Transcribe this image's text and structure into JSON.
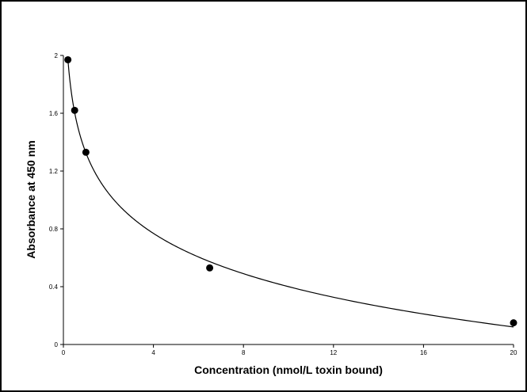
{
  "chart_data": {
    "type": "scatter",
    "title": "",
    "xlabel": "Concentration (nmol/L toxin bound)",
    "ylabel": "Absorbance  at 450 nm",
    "xlim": [
      0,
      20
    ],
    "ylim": [
      0,
      2
    ],
    "xticks": [
      0,
      4,
      8,
      12,
      16,
      20
    ],
    "yticks": [
      0,
      0.4,
      0.8,
      1.2,
      1.6,
      2
    ],
    "xtick_labels": [
      "0",
      "4",
      "8",
      "12",
      "16",
      "20"
    ],
    "ytick_labels": [
      "0",
      "0.4",
      "0.8",
      "1.2",
      "1.6",
      "2"
    ],
    "grid": false,
    "legend": "none",
    "series": [
      {
        "points": [
          {
            "x": 0.2,
            "y": 1.97
          },
          {
            "x": 0.5,
            "y": 1.62
          },
          {
            "x": 1.0,
            "y": 1.33
          },
          {
            "x": 6.5,
            "y": 0.53
          },
          {
            "x": 20.0,
            "y": 0.15
          }
        ],
        "color": "#000000",
        "trendline": true
      }
    ]
  }
}
